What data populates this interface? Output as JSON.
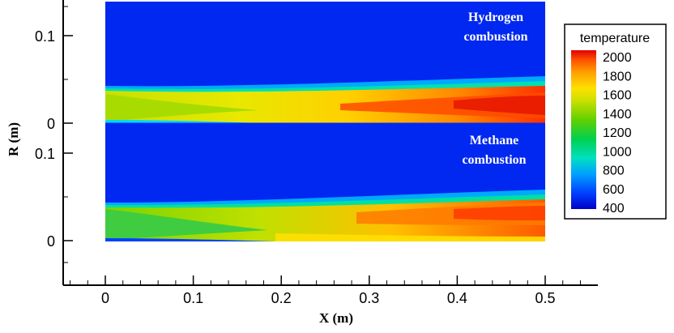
{
  "chart_data": {
    "type": "heatmap",
    "xlabel": "X (m)",
    "ylabel": "R (m)",
    "xlim": [
      -0.05,
      0.55
    ],
    "x_ticks": [
      "0",
      "0.1",
      "0.2",
      "0.3",
      "0.4",
      "0.5"
    ],
    "x_tick_values": [
      0,
      0.1,
      0.2,
      0.3,
      0.4,
      0.5
    ],
    "panels": [
      {
        "label_lines": [
          "Hydrogen",
          "combustion"
        ],
        "r_range": [
          0,
          0.14
        ],
        "y_ticks": [
          "0.1",
          "0"
        ],
        "y_tick_values": [
          0.1,
          0
        ],
        "flame_max_temperature": 2000
      },
      {
        "label_lines": [
          "Methane",
          "combustion"
        ],
        "r_range": [
          0,
          0.14
        ],
        "y_ticks": [
          "0.1",
          "0"
        ],
        "y_tick_values": [
          0.1,
          0
        ],
        "flame_max_temperature": 1900
      }
    ],
    "colorbar": {
      "title": "temperature",
      "ticks": [
        "2000",
        "1800",
        "1600",
        "1400",
        "1200",
        "1000",
        "800",
        "600",
        "400"
      ],
      "tick_values": [
        2000,
        1800,
        1600,
        1400,
        1200,
        1000,
        800,
        600,
        400
      ],
      "range": [
        400,
        2000
      ],
      "colors": [
        "#0000c8",
        "#0040ff",
        "#00a0ff",
        "#00e0c0",
        "#00d050",
        "#60d000",
        "#c8e000",
        "#ffe000",
        "#ffa000",
        "#ff5000",
        "#e00000"
      ]
    },
    "grid": false
  }
}
